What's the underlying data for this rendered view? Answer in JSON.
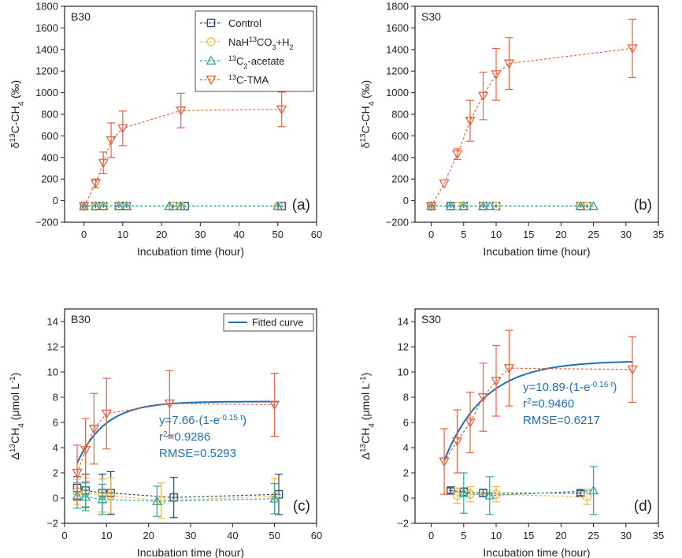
{
  "colors": {
    "control": "#2e4a6b",
    "nahco3": "#f2b84a",
    "acetate": "#2aa79b",
    "tma": "#e8623f",
    "fit": "#1f6fb2",
    "axis": "#222222"
  },
  "chart_data": [
    {
      "type": "line",
      "panel_label": "B30",
      "tag": "(a)",
      "xlabel": "Incubation time (hour)",
      "ylabel": {
        "pre": "δ",
        "sup": "13",
        "mid": "C-CH",
        "sub": "4",
        "post": " (‰)"
      },
      "xlim": [
        -5,
        60
      ],
      "ylim": [
        -200,
        1800
      ],
      "xticks": [
        0,
        10,
        20,
        30,
        40,
        50,
        60
      ],
      "yticks": [
        -200,
        0,
        200,
        400,
        600,
        800,
        1000,
        1200,
        1400,
        1600,
        1800
      ],
      "legend": {
        "placement": "top-right",
        "entries": [
          {
            "key": "control",
            "label": "Control"
          },
          {
            "key": "nahco3",
            "label": "NaH13CO3+H2"
          },
          {
            "key": "acetate",
            "label": "13C2-acetate"
          },
          {
            "key": "tma",
            "label": "13C-TMA"
          }
        ]
      },
      "series": [
        {
          "key": "control",
          "marker": "square",
          "x": [
            0,
            3,
            5,
            9,
            11,
            23,
            26,
            51
          ],
          "y": [
            -50,
            -50,
            -50,
            -50,
            -50,
            -50,
            -50,
            -50
          ],
          "err": [
            0,
            0,
            0,
            0,
            0,
            0,
            0,
            0
          ]
        },
        {
          "key": "nahco3",
          "marker": "circle",
          "x": [
            0,
            3,
            5,
            9,
            11,
            23,
            25,
            50
          ],
          "y": [
            -50,
            -50,
            -50,
            -50,
            -50,
            -50,
            -50,
            -50
          ],
          "err": [
            0,
            0,
            0,
            0,
            0,
            0,
            0,
            0
          ]
        },
        {
          "key": "acetate",
          "marker": "triangle-up",
          "x": [
            0,
            3,
            5,
            9,
            11,
            22,
            25,
            50
          ],
          "y": [
            -50,
            -50,
            -50,
            -50,
            -50,
            -50,
            -50,
            -50
          ],
          "err": [
            0,
            0,
            0,
            0,
            0,
            0,
            0,
            0
          ]
        },
        {
          "key": "tma",
          "marker": "triangle-down",
          "x": [
            0,
            3,
            5,
            7,
            10,
            25,
            51
          ],
          "y": [
            -50,
            160,
            350,
            560,
            670,
            835,
            845
          ],
          "err": [
            0,
            40,
            100,
            160,
            160,
            160,
            160
          ]
        }
      ]
    },
    {
      "type": "line",
      "panel_label": "S30",
      "tag": "(b)",
      "xlabel": "Incubation time (hour)",
      "ylabel": {
        "pre": "δ",
        "sup": "13",
        "mid": "C-CH",
        "sub": "4",
        "post": " (‰)"
      },
      "xlim": [
        -2.5,
        35
      ],
      "ylim": [
        -200,
        1800
      ],
      "xticks": [
        0,
        5,
        10,
        15,
        20,
        25,
        30,
        35
      ],
      "yticks": [
        -200,
        0,
        200,
        400,
        600,
        800,
        1000,
        1200,
        1400,
        1600,
        1800
      ],
      "series": [
        {
          "key": "control",
          "marker": "square",
          "x": [
            0,
            3,
            5,
            8,
            10,
            23,
            24
          ],
          "y": [
            -50,
            -50,
            -50,
            -50,
            -50,
            -50,
            -50
          ],
          "err": [
            0,
            0,
            0,
            0,
            0,
            0,
            0
          ]
        },
        {
          "key": "nahco3",
          "marker": "circle",
          "x": [
            0,
            4,
            5,
            8,
            10,
            23,
            24
          ],
          "y": [
            -50,
            -50,
            -50,
            -50,
            -50,
            -50,
            -50
          ],
          "err": [
            0,
            0,
            0,
            0,
            0,
            0,
            0
          ]
        },
        {
          "key": "acetate",
          "marker": "triangle-up",
          "x": [
            0,
            3,
            5,
            8,
            9,
            23,
            25
          ],
          "y": [
            -50,
            -50,
            -50,
            -50,
            -50,
            -50,
            -50
          ],
          "err": [
            0,
            0,
            0,
            0,
            0,
            0,
            0
          ]
        },
        {
          "key": "tma",
          "marker": "triangle-down",
          "x": [
            0,
            2,
            4,
            6,
            8,
            10,
            12,
            31
          ],
          "y": [
            -50,
            160,
            430,
            740,
            970,
            1170,
            1270,
            1410
          ],
          "err": [
            0,
            0,
            50,
            190,
            220,
            240,
            240,
            270
          ]
        }
      ]
    },
    {
      "type": "line",
      "panel_label": "B30",
      "tag": "(c)",
      "xlabel": "Incubation time (hour)",
      "ylabel": {
        "pre": "Δ",
        "sup": "13",
        "mid": "CH",
        "sub": "4",
        "post": " (μmol L",
        "sup2": "-1",
        "post2": ")"
      },
      "xlim": [
        0,
        60
      ],
      "ylim": [
        -2,
        15
      ],
      "xticks": [
        0,
        10,
        20,
        30,
        40,
        50,
        60
      ],
      "yticks": [
        -2,
        0,
        2,
        4,
        6,
        8,
        10,
        12,
        14
      ],
      "legend": {
        "placement": "top-right",
        "entries": [
          {
            "key": "fit",
            "label": "Fitted curve"
          }
        ]
      },
      "fit": {
        "a": 7.66,
        "k": 0.15,
        "x_start": 3,
        "x_end": 51
      },
      "annotation": {
        "equation": "y=7.66·(1-e",
        "exp": "-0.15·t",
        "close": ")",
        "r2_label": "r",
        "r2_sup": "2",
        "r2_value": "=0.9286",
        "rmse": "RMSE=0.5293"
      },
      "series": [
        {
          "key": "control",
          "marker": "square",
          "x": [
            3,
            5,
            9,
            11,
            26,
            51
          ],
          "y": [
            0.8,
            0.6,
            0.4,
            0.4,
            0.05,
            0.3
          ],
          "err": [
            0.9,
            1.3,
            1.5,
            1.7,
            1.6,
            1.6
          ]
        },
        {
          "key": "nahco3",
          "marker": "circle",
          "x": [
            3,
            5,
            9,
            11,
            23,
            50
          ],
          "y": [
            0.5,
            0.4,
            0.2,
            0.2,
            -0.2,
            0.15
          ],
          "err": [
            1.0,
            1.2,
            1.3,
            1.4,
            1.4,
            1.4
          ]
        },
        {
          "key": "acetate",
          "marker": "triangle-up",
          "x": [
            3,
            5,
            9,
            22,
            50
          ],
          "y": [
            0.2,
            0.1,
            -0.1,
            -0.25,
            -0.05
          ],
          "err": [
            1.0,
            1.1,
            1.2,
            1.2,
            1.2
          ]
        },
        {
          "key": "tma",
          "marker": "triangle-down",
          "x": [
            3,
            5,
            7,
            10,
            25,
            50
          ],
          "y": [
            2.0,
            3.8,
            5.5,
            6.7,
            7.5,
            7.4
          ],
          "err": [
            2.2,
            2.5,
            2.8,
            2.8,
            2.6,
            2.5
          ]
        }
      ]
    },
    {
      "type": "line",
      "panel_label": "S30",
      "tag": "(d)",
      "xlabel": "Incubation time (hour)",
      "ylabel": {
        "pre": "Δ",
        "sup": "13",
        "mid": "CH",
        "sub": "4",
        "post": " (μmol L",
        "sup2": "-1",
        "post2": ")"
      },
      "xlim": [
        -2.5,
        35
      ],
      "ylim": [
        -2,
        15
      ],
      "xticks": [
        0,
        5,
        10,
        15,
        20,
        25,
        30,
        35
      ],
      "yticks": [
        -2,
        0,
        2,
        4,
        6,
        8,
        10,
        12,
        14
      ],
      "fit": {
        "a": 10.89,
        "k": 0.16,
        "x_start": 2,
        "x_end": 31
      },
      "annotation": {
        "equation": "y=10.89·(1-e",
        "exp": "-0.16·t",
        "close": ")",
        "r2_label": "r",
        "r2_sup": "2",
        "r2_value": "=0.9460",
        "rmse": "RMSE=0.6217"
      },
      "series": [
        {
          "key": "control",
          "marker": "square",
          "x": [
            3,
            5,
            8,
            23
          ],
          "y": [
            0.6,
            0.5,
            0.4,
            0.4
          ],
          "err": [
            0.2,
            0.3,
            0.3,
            0.2
          ]
        },
        {
          "key": "nahco3",
          "marker": "circle",
          "x": [
            4,
            6,
            10,
            24
          ],
          "y": [
            0.2,
            0.3,
            0.3,
            0.1
          ],
          "err": [
            0.6,
            0.6,
            0.6,
            0.6
          ]
        },
        {
          "key": "acetate",
          "marker": "triangle-up",
          "x": [
            5,
            9,
            25
          ],
          "y": [
            0.4,
            0.2,
            0.6
          ],
          "err": [
            1.6,
            1.5,
            1.9
          ]
        },
        {
          "key": "tma",
          "marker": "triangle-down",
          "x": [
            2,
            4,
            6,
            8,
            10,
            12,
            31
          ],
          "y": [
            2.9,
            4.5,
            6.0,
            8.0,
            9.3,
            10.3,
            10.2
          ],
          "err": [
            2.6,
            2.5,
            2.4,
            2.7,
            2.8,
            3.0,
            2.6
          ]
        }
      ]
    }
  ]
}
